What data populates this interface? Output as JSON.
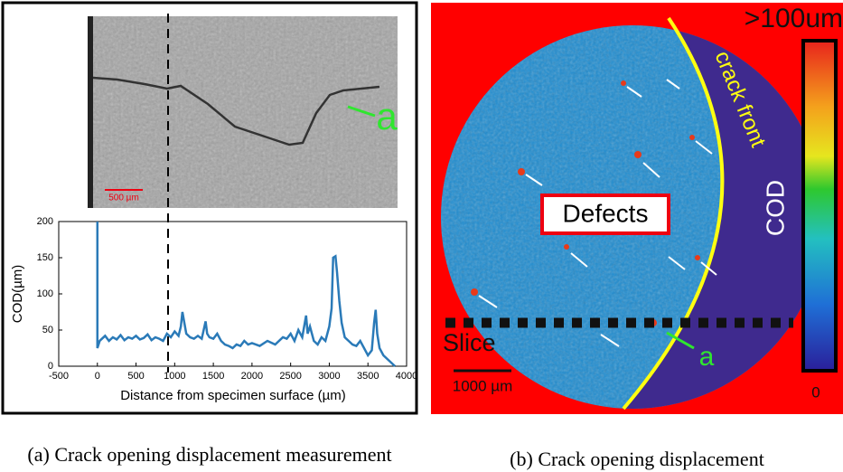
{
  "panel_a": {
    "caption": "(a) Crack opening displacement measurement",
    "image_label": "a",
    "scale_bar": "500 µm"
  },
  "panel_b": {
    "caption": "(b) Crack opening displacement",
    "colorbar_max": ">100um",
    "colorbar_min": "0",
    "colorbar_title": "COD",
    "crack_front": "crack front",
    "defects": "Defects",
    "slice": "Slice",
    "a_label": "a",
    "scale_bar": "1000 µm"
  },
  "chart_data": {
    "type": "line",
    "x_label": "Distance from specimen surface (µm)",
    "y_label": "COD(µm)",
    "xlim": [
      -500,
      4000
    ],
    "ylim": [
      0,
      200
    ],
    "xticks": [
      -500,
      0,
      500,
      1000,
      1500,
      2000,
      2500,
      3000,
      3500,
      4000
    ],
    "yticks": [
      0,
      50,
      100,
      150,
      200
    ],
    "x": [
      0,
      0,
      30,
      60,
      100,
      150,
      200,
      250,
      300,
      350,
      400,
      450,
      500,
      550,
      600,
      650,
      700,
      750,
      800,
      850,
      900,
      950,
      1000,
      1050,
      1080,
      1100,
      1150,
      1200,
      1250,
      1300,
      1350,
      1400,
      1420,
      1450,
      1500,
      1550,
      1600,
      1650,
      1700,
      1750,
      1800,
      1850,
      1900,
      1950,
      2000,
      2100,
      2200,
      2300,
      2400,
      2450,
      2500,
      2550,
      2600,
      2650,
      2700,
      2720,
      2750,
      2800,
      2850,
      2900,
      2950,
      3000,
      3030,
      3050,
      3080,
      3100,
      3130,
      3160,
      3200,
      3250,
      3300,
      3350,
      3400,
      3450,
      3500,
      3550,
      3580,
      3600,
      3620,
      3650,
      3700,
      3750,
      3800,
      3850
    ],
    "series": [
      {
        "color": "#2a7ab8",
        "values": [
          200,
          25,
          35,
          38,
          42,
          35,
          40,
          37,
          43,
          36,
          40,
          38,
          42,
          37,
          39,
          44,
          36,
          40,
          38,
          35,
          45,
          40,
          48,
          42,
          55,
          75,
          45,
          40,
          38,
          42,
          38,
          62,
          45,
          40,
          38,
          45,
          35,
          30,
          28,
          25,
          30,
          28,
          35,
          30,
          32,
          28,
          35,
          30,
          40,
          38,
          45,
          35,
          50,
          40,
          70,
          45,
          55,
          35,
          30,
          40,
          35,
          55,
          80,
          150,
          152,
          130,
          90,
          60,
          40,
          35,
          30,
          28,
          35,
          25,
          15,
          22,
          60,
          78,
          45,
          25,
          15,
          10,
          5,
          0
        ]
      }
    ]
  }
}
